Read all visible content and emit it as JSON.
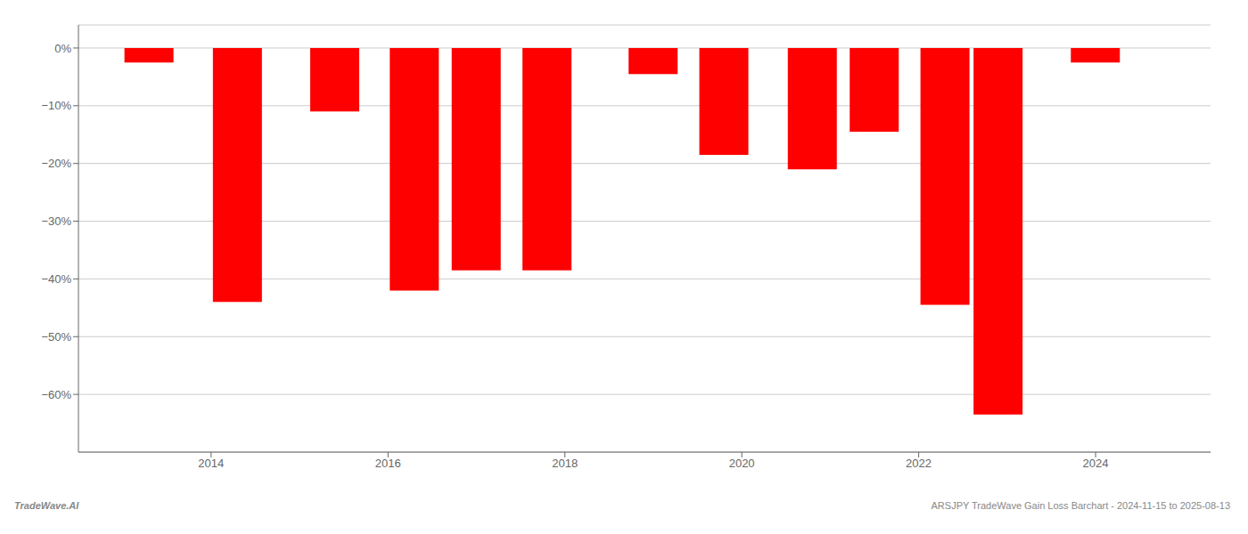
{
  "chart_data": {
    "type": "bar",
    "x": [
      2013.3,
      2014.3,
      2015.4,
      2016.3,
      2017.0,
      2017.8,
      2019.0,
      2019.8,
      2020.8,
      2021.5,
      2022.3,
      2022.9,
      2024.0
    ],
    "values": [
      -2.5,
      -44.0,
      -11.0,
      -42.0,
      -38.5,
      -38.5,
      -4.5,
      -18.5,
      -21.0,
      -14.5,
      -44.5,
      -63.5,
      -2.5
    ],
    "color": "#ff0000",
    "xlim": [
      2012.5,
      2025.3
    ],
    "xticks": [
      2014,
      2016,
      2018,
      2020,
      2022,
      2024
    ],
    "ylim": [
      -70,
      4
    ],
    "yticks": [
      {
        "value": 0,
        "label": "0%"
      },
      {
        "value": -10,
        "label": "−10%"
      },
      {
        "value": -20,
        "label": "−20%"
      },
      {
        "value": -30,
        "label": "−30%"
      },
      {
        "value": -40,
        "label": "−40%"
      },
      {
        "value": -50,
        "label": "−50%"
      },
      {
        "value": -60,
        "label": "−60%"
      }
    ],
    "grid": true,
    "annotations": [
      "TradeWave.AI",
      "ARSJPY TradeWave Gain Loss Barchart - 2024-11-15 to 2025-08-13"
    ]
  }
}
